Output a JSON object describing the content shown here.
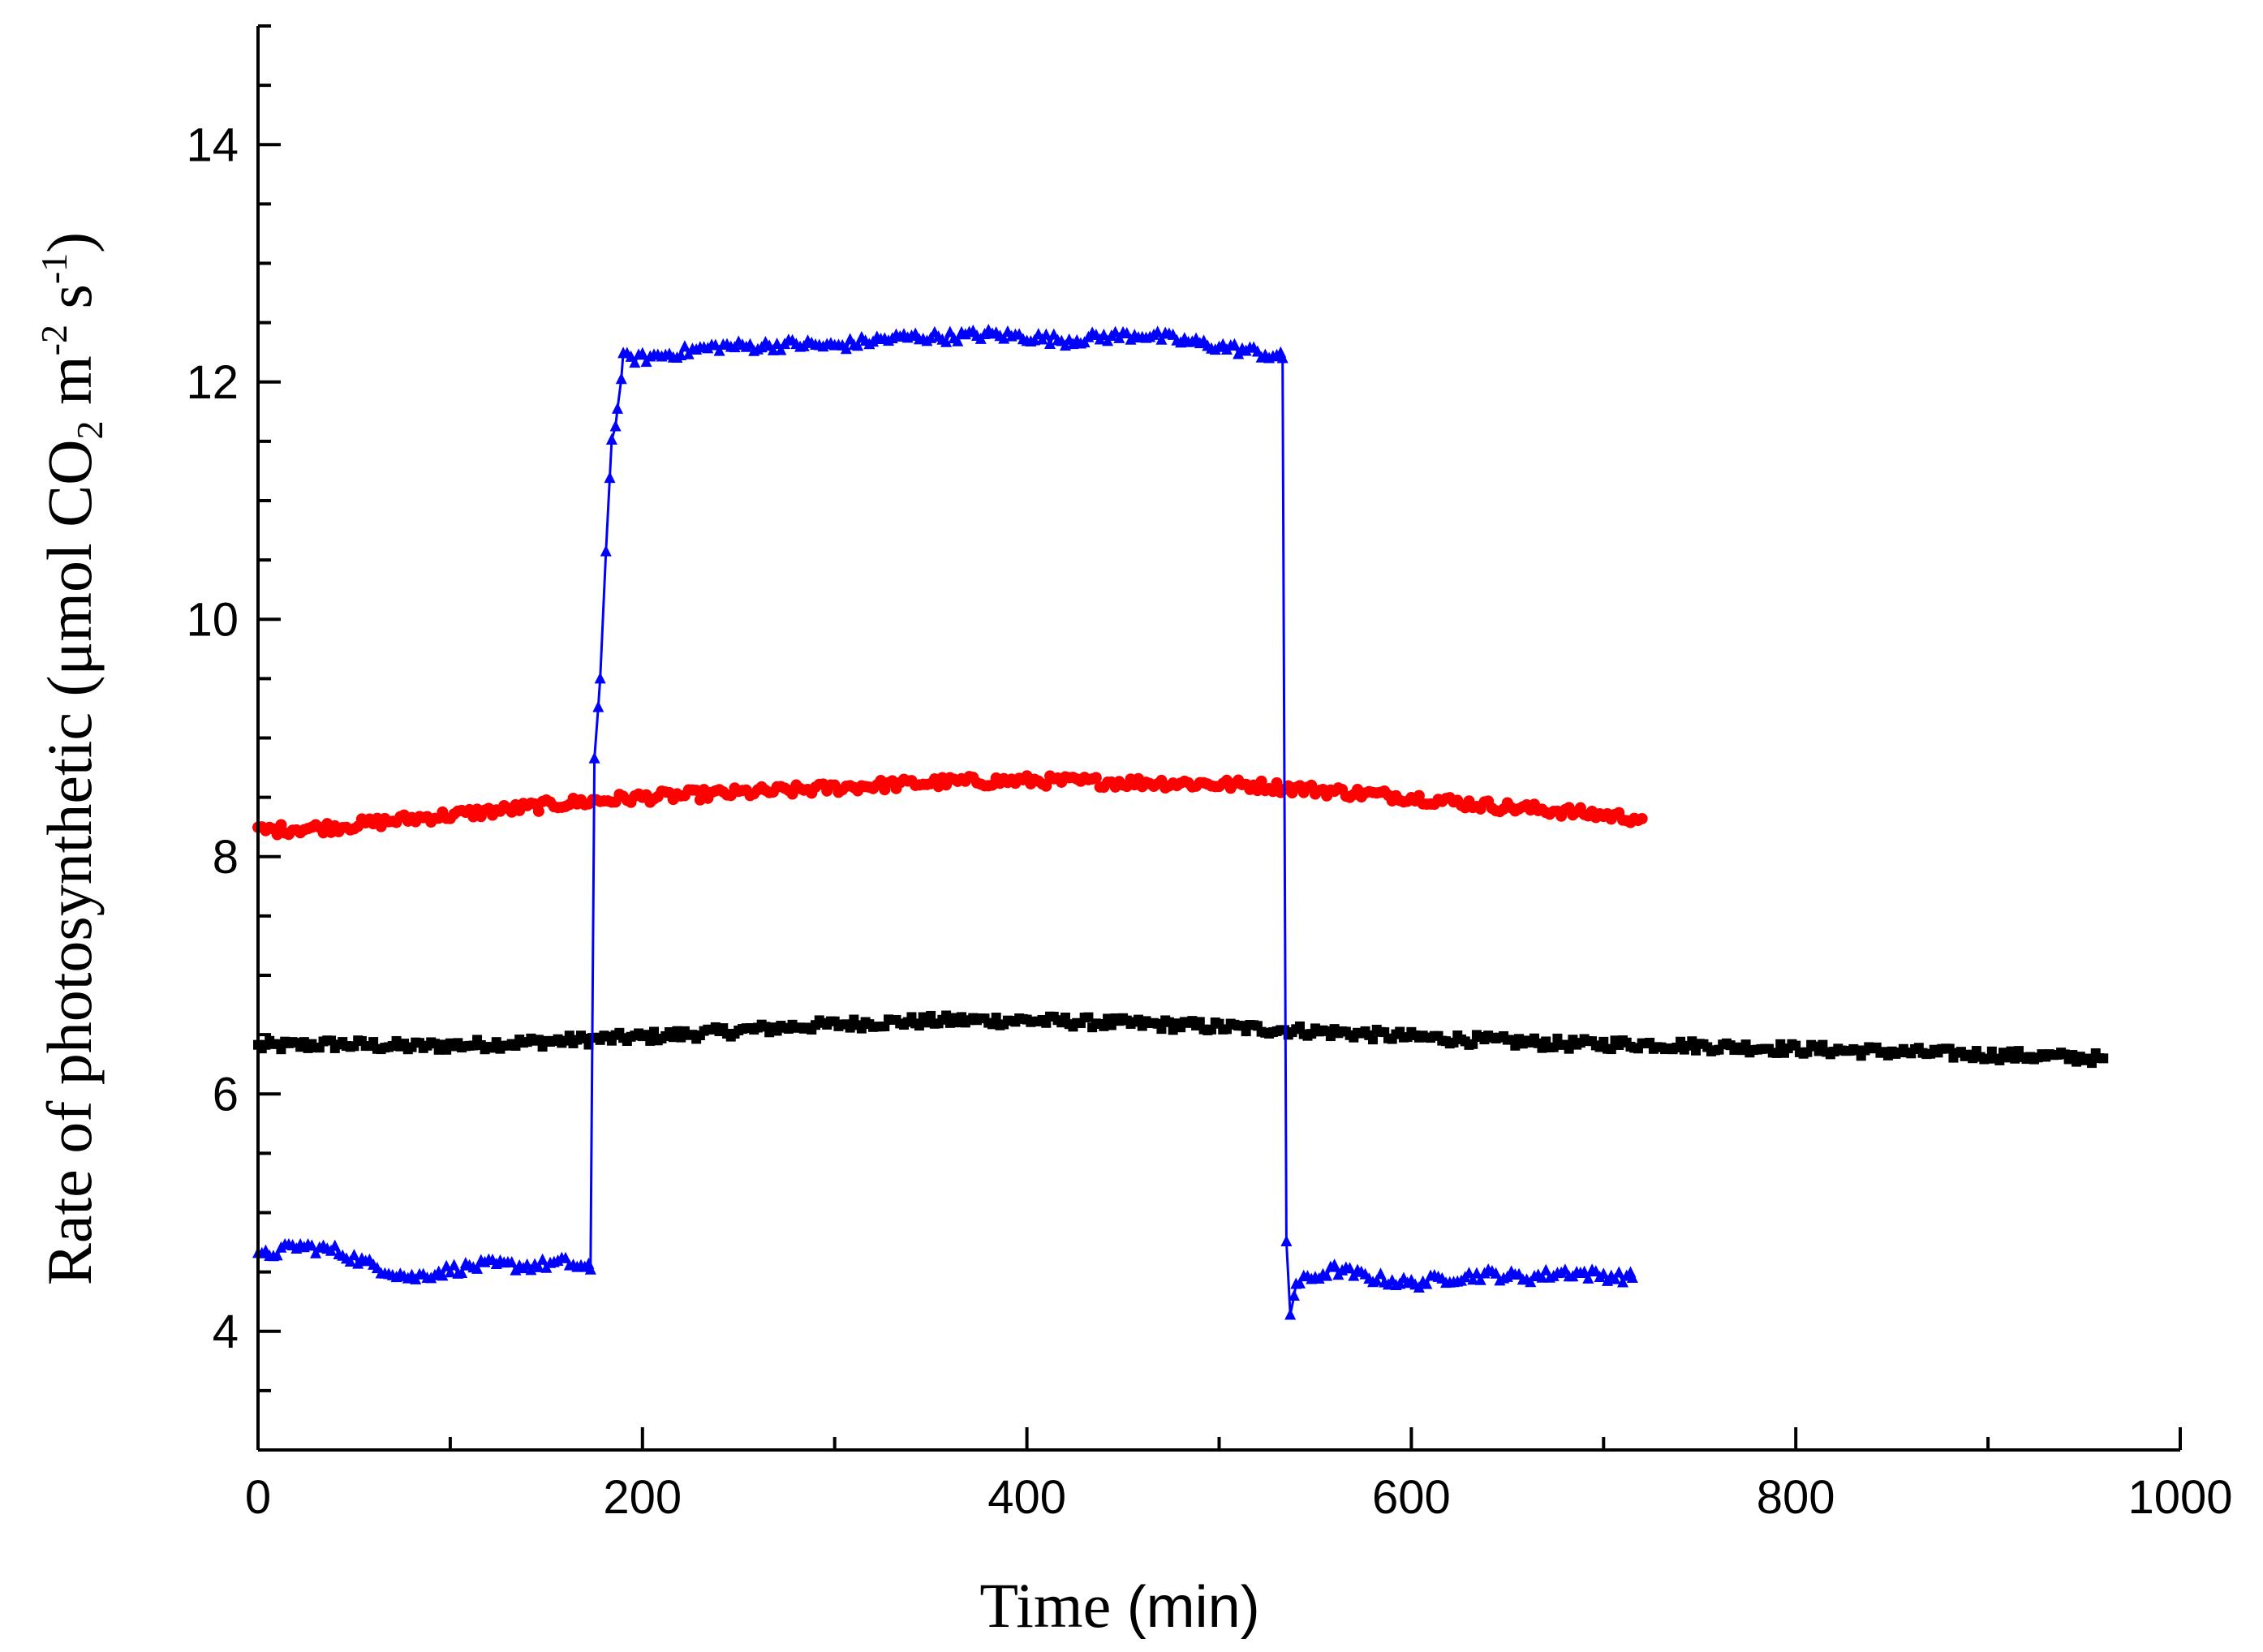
{
  "chart_data": {
    "type": "scatter",
    "title": "",
    "xlabel": {
      "main": "Time",
      "unit": "(min)"
    },
    "ylabel": {
      "prefix": "Rate of photosynthetic (μmol CO",
      "co2_sub": "2",
      "m_text": " m",
      "m_sup": "-2",
      "s_text": " s",
      "s_sup": "-1",
      "suffix": ")"
    },
    "xlim": [
      0,
      1000
    ],
    "ylim": [
      3,
      15
    ],
    "x_ticks": [
      0,
      200,
      400,
      600,
      800,
      1000
    ],
    "x_tick_labels": [
      "0",
      "200",
      "400",
      "600",
      "800",
      "1000"
    ],
    "y_ticks": [
      4,
      6,
      8,
      10,
      12,
      14
    ],
    "y_tick_labels": [
      "4",
      "6",
      "8",
      "10",
      "12",
      "14"
    ],
    "grid": false,
    "series": [
      {
        "name": "black",
        "color": "#000000",
        "marker": "square",
        "connected": false,
        "x": [
          0,
          40,
          80,
          120,
          160,
          200,
          240,
          280,
          320,
          360,
          400,
          440,
          480,
          520,
          560,
          600,
          640,
          680,
          720,
          760,
          800,
          840,
          880,
          920,
          960
        ],
        "y": [
          6.4,
          6.42,
          6.4,
          6.42,
          6.45,
          6.48,
          6.52,
          6.57,
          6.6,
          6.62,
          6.62,
          6.6,
          6.58,
          6.55,
          6.52,
          6.48,
          6.45,
          6.42,
          6.42,
          6.4,
          6.38,
          6.36,
          6.34,
          6.32,
          6.3
        ]
      },
      {
        "name": "red",
        "color": "#ff0000",
        "marker": "circle",
        "connected": false,
        "x": [
          0,
          40,
          80,
          120,
          160,
          200,
          240,
          280,
          320,
          360,
          400,
          440,
          480,
          520,
          560,
          600,
          640,
          680,
          720
        ],
        "y": [
          8.22,
          8.25,
          8.32,
          8.38,
          8.45,
          8.5,
          8.53,
          8.56,
          8.6,
          8.63,
          8.64,
          8.63,
          8.62,
          8.6,
          8.55,
          8.5,
          8.43,
          8.38,
          8.32
        ]
      },
      {
        "name": "blue",
        "color": "#0000ff",
        "marker": "triangle",
        "connected": true,
        "x": [
          0,
          20,
          40,
          60,
          80,
          100,
          120,
          140,
          160,
          173,
          175,
          178,
          181,
          184,
          187,
          190,
          200,
          220,
          240,
          260,
          280,
          300,
          320,
          340,
          360,
          380,
          400,
          420,
          440,
          460,
          480,
          500,
          520,
          533,
          535,
          537,
          540,
          560,
          580,
          600,
          620,
          640,
          660,
          680,
          700,
          715
        ],
        "y": [
          4.62,
          4.72,
          4.68,
          4.55,
          4.45,
          4.52,
          4.56,
          4.55,
          4.58,
          4.52,
          8.8,
          9.5,
          10.6,
          11.5,
          11.75,
          12.2,
          12.2,
          12.25,
          12.3,
          12.3,
          12.32,
          12.3,
          12.35,
          12.38,
          12.38,
          12.4,
          12.38,
          12.35,
          12.38,
          12.4,
          12.35,
          12.3,
          12.25,
          12.2,
          4.75,
          4.15,
          4.4,
          4.52,
          4.45,
          4.4,
          4.45,
          4.48,
          4.45,
          4.5,
          4.47,
          4.45
        ]
      }
    ]
  }
}
